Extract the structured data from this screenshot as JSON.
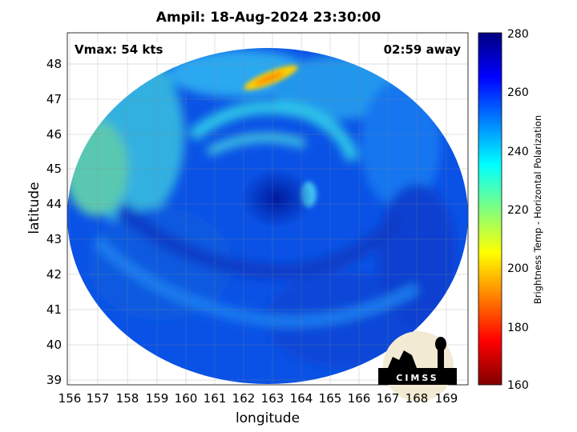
{
  "title": "Ampil: 18-Aug-2024 23:30:00",
  "vmax_label": "Vmax: 54 kts",
  "away_label": "02:59 away",
  "axes": {
    "xlabel": "longitude",
    "ylabel": "latitude",
    "xticks": [
      "156",
      "157",
      "158",
      "159",
      "160",
      "161",
      "162",
      "163",
      "164",
      "165",
      "166",
      "167",
      "168",
      "169"
    ],
    "yticks": [
      "48",
      "47",
      "46",
      "45",
      "44",
      "43",
      "42",
      "41",
      "40",
      "39"
    ]
  },
  "colorbar": {
    "label": "Brightness Temp - Horizontal Polarization",
    "ticks": [
      "280",
      "260",
      "240",
      "220",
      "200",
      "180",
      "160"
    ],
    "colormap": [
      "#000080",
      "#0000ff",
      "#0080ff",
      "#00ffff",
      "#80ff80",
      "#ffff00",
      "#ff8000",
      "#ff0000",
      "#800000"
    ]
  },
  "logo": {
    "text": "CIMSS"
  }
}
